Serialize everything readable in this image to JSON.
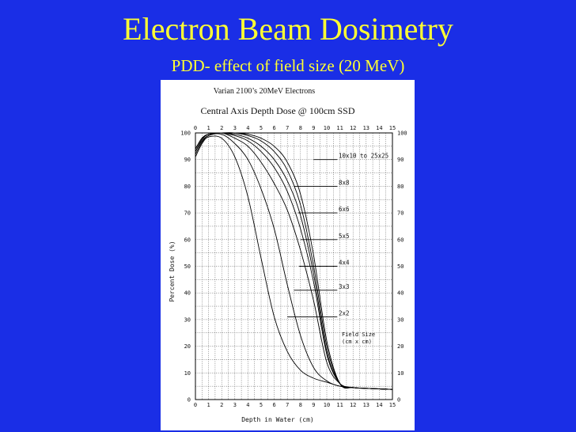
{
  "slide": {
    "title": "Electron Beam Dosimetry",
    "subtitle": "PDD- effect of field size (20 MeV)"
  },
  "chart_data": {
    "type": "line",
    "heading": "Varian 2100’s 20MeV Electrons",
    "title": "Central Axis Depth Dose @ 100cm SSD",
    "xlabel": "Depth in Water (cm)",
    "ylabel": "Percent Dose (%)",
    "xlim": [
      0,
      15
    ],
    "ylim": [
      0,
      100
    ],
    "x_ticks": [
      "0",
      "1",
      "2",
      "3",
      "4",
      "5",
      "6",
      "7",
      "8",
      "9",
      "10",
      "11",
      "12",
      "13",
      "14",
      "15"
    ],
    "y_ticks": [
      "0",
      "10",
      "20",
      "30",
      "40",
      "50",
      "60",
      "70",
      "80",
      "90",
      "100"
    ],
    "grid": true,
    "legend_title": "Field Size\n(cm x cm)",
    "colors": {
      "background": "#1a2ee6",
      "title": "#ffff33",
      "curve": "#000000",
      "grid": "#000000"
    },
    "series": [
      {
        "name": "10x10 to 25x25",
        "x": [
          0,
          0.5,
          1,
          2,
          3,
          4,
          5,
          6,
          7,
          8,
          9,
          10,
          11,
          12,
          13,
          14,
          15
        ],
        "y": [
          94,
          98,
          99.5,
          100,
          100,
          99.5,
          98,
          95,
          89,
          77,
          54,
          22,
          6,
          4.5,
          4.2,
          4,
          3.8
        ],
        "label_at": [
          9.0,
          90
        ]
      },
      {
        "name": "8x8",
        "x": [
          0,
          0.5,
          1,
          2,
          3,
          4,
          5,
          6,
          7,
          8,
          9,
          10,
          11,
          12,
          13,
          14,
          15
        ],
        "y": [
          94,
          98,
          99.5,
          100,
          100,
          99,
          97,
          93,
          86,
          73,
          50,
          20,
          6,
          4.5,
          4.2,
          4,
          3.8
        ],
        "label_at": [
          7.5,
          80
        ]
      },
      {
        "name": "6x6",
        "x": [
          0,
          0.5,
          1,
          2,
          3,
          4,
          5,
          6,
          7,
          8,
          9,
          10,
          11,
          12,
          13,
          14,
          15
        ],
        "y": [
          94,
          98,
          99.5,
          100,
          99.5,
          98,
          95,
          90,
          82,
          69,
          47,
          18,
          6,
          4.5,
          4.2,
          4,
          3.8
        ],
        "label_at": [
          7.8,
          70
        ]
      },
      {
        "name": "5x5",
        "x": [
          0,
          0.5,
          1,
          2,
          3,
          4,
          5,
          6,
          7,
          8,
          9,
          10,
          11,
          12,
          13,
          14,
          15
        ],
        "y": [
          93,
          97.5,
          99.5,
          100,
          99,
          97,
          93,
          87,
          78,
          64,
          44,
          17,
          6,
          4.5,
          4.2,
          4,
          3.8
        ],
        "label_at": [
          8.0,
          60
        ]
      },
      {
        "name": "4x4",
        "x": [
          0,
          0.5,
          1,
          2,
          3,
          4,
          5,
          6,
          7,
          8,
          9,
          10,
          11,
          12,
          13,
          14,
          15
        ],
        "y": [
          93,
          97,
          99,
          100,
          98,
          95,
          89,
          81,
          71,
          56,
          37,
          14,
          6,
          4.5,
          4.2,
          4,
          3.8
        ],
        "label_at": [
          7.9,
          50
        ]
      },
      {
        "name": "3x3",
        "x": [
          0,
          0.5,
          1,
          2,
          3,
          4,
          5,
          6,
          7,
          8,
          9,
          10,
          11,
          12,
          13,
          14,
          15
        ],
        "y": [
          92,
          96.5,
          99,
          99.5,
          96,
          90,
          79,
          64,
          43,
          24,
          12,
          7,
          5,
          4.5,
          4.2,
          4,
          3.8
        ],
        "label_at": [
          7.5,
          41
        ]
      },
      {
        "name": "2x2",
        "x": [
          0,
          0.5,
          1,
          2,
          3,
          4,
          5,
          6,
          7,
          8,
          9,
          10,
          11,
          12,
          13,
          14,
          15
        ],
        "y": [
          91,
          96,
          98.5,
          98,
          91,
          76,
          53,
          31,
          18,
          11,
          8,
          6.5,
          5,
          4.5,
          4.2,
          4,
          3.8
        ],
        "label_at": [
          7.0,
          31
        ]
      }
    ]
  }
}
